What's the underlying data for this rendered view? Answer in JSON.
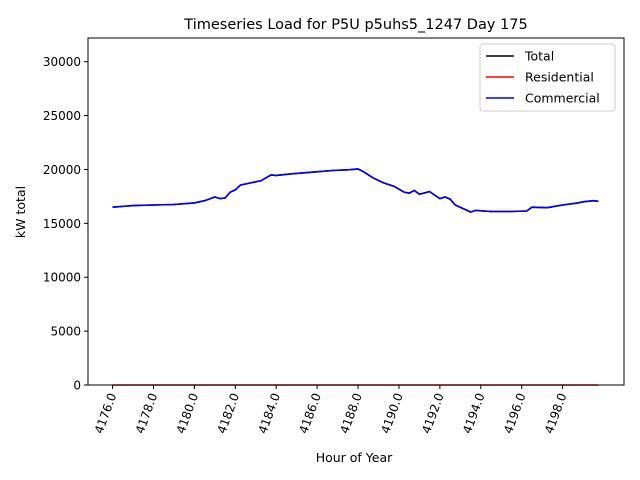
{
  "chart_data": {
    "type": "line",
    "title": "Timeseries Load for P5U p5uhs5_1247  Day 175",
    "xlabel": "Hour of Year",
    "ylabel": "kW total",
    "xlim": [
      4174.8,
      4201.0
    ],
    "ylim": [
      0,
      32200
    ],
    "xticks": [
      4176,
      4178,
      4180,
      4182,
      4184,
      4186,
      4188,
      4190,
      4192,
      4194,
      4196,
      4198
    ],
    "xtick_labels": [
      "4176.0",
      "4178.0",
      "4180.0",
      "4182.0",
      "4184.0",
      "4186.0",
      "4188.0",
      "4190.0",
      "4192.0",
      "4194.0",
      "4196.0",
      "4198.0"
    ],
    "yticks": [
      0,
      5000,
      10000,
      15000,
      20000,
      25000,
      30000
    ],
    "ytick_labels": [
      "0",
      "5000",
      "10000",
      "15000",
      "20000",
      "25000",
      "30000"
    ],
    "grid": false,
    "legend_position": "top-right",
    "x": [
      4176.0,
      4177.0,
      4178.0,
      4179.0,
      4180.0,
      4180.5,
      4181.0,
      4181.25,
      4181.5,
      4181.75,
      4182.0,
      4182.25,
      4182.75,
      4183.25,
      4183.75,
      4184.0,
      4184.75,
      4185.75,
      4186.75,
      4187.6,
      4188.0,
      4188.25,
      4188.75,
      4189.25,
      4189.75,
      4190.25,
      4190.5,
      4190.75,
      4191.0,
      4191.5,
      4192.0,
      4192.25,
      4192.5,
      4192.75,
      4193.5,
      4193.75,
      4194.5,
      4195.5,
      4196.25,
      4196.5,
      4197.25,
      4198.0,
      4198.75,
      4199.0,
      4199.5,
      4199.75
    ],
    "series": [
      {
        "name": "Total",
        "color": "#000000",
        "values": [
          16500,
          16650,
          16700,
          16750,
          16900,
          17100,
          17450,
          17300,
          17350,
          17900,
          18100,
          18550,
          18750,
          18950,
          19500,
          19450,
          19600,
          19750,
          19900,
          19980,
          20050,
          19800,
          19200,
          18750,
          18450,
          17900,
          17800,
          18050,
          17700,
          17950,
          17300,
          17450,
          17250,
          16700,
          16050,
          16200,
          16100,
          16100,
          16150,
          16500,
          16450,
          16700,
          16900,
          17000,
          17100,
          17050
        ]
      },
      {
        "name": "Residential",
        "color": "#ff0000",
        "values": [
          0,
          0,
          0,
          0,
          0,
          0,
          0,
          0,
          0,
          0,
          0,
          0,
          0,
          0,
          0,
          0,
          0,
          0,
          0,
          0,
          0,
          0,
          0,
          0,
          0,
          0,
          0,
          0,
          0,
          0,
          0,
          0,
          0,
          0,
          0,
          0,
          0,
          0,
          0,
          0,
          0,
          0,
          0,
          0,
          0,
          0
        ]
      },
      {
        "name": "Commercial",
        "color": "#0000ff",
        "values": [
          16500,
          16650,
          16700,
          16750,
          16900,
          17100,
          17450,
          17300,
          17350,
          17900,
          18100,
          18550,
          18750,
          18950,
          19500,
          19450,
          19600,
          19750,
          19900,
          19980,
          20050,
          19800,
          19200,
          18750,
          18450,
          17900,
          17800,
          18050,
          17700,
          17950,
          17300,
          17450,
          17250,
          16700,
          16050,
          16200,
          16100,
          16100,
          16150,
          16500,
          16450,
          16700,
          16900,
          17000,
          17100,
          17050
        ]
      }
    ]
  }
}
